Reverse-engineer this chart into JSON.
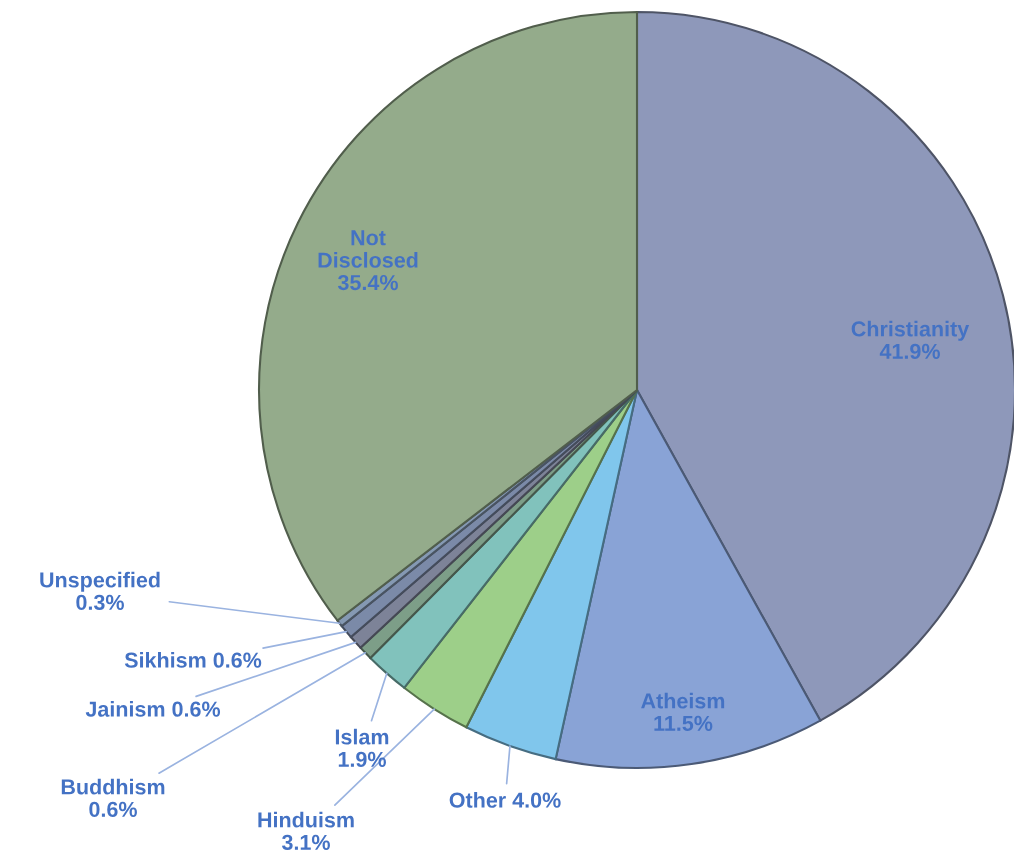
{
  "chart_data": {
    "type": "pie",
    "categories": [
      "Christianity",
      "Atheism",
      "Other",
      "Hinduism",
      "Islam",
      "Buddhism",
      "Jainism",
      "Sikhism",
      "Unspecified",
      "Not Disclosed"
    ],
    "values": [
      41.9,
      11.5,
      4.0,
      3.1,
      1.9,
      0.6,
      0.6,
      0.6,
      0.3,
      35.4
    ],
    "value_labels": [
      "41.9%",
      "11.5%",
      "4.0%",
      "3.1%",
      "1.9%",
      "0.6%",
      "0.6%",
      "0.6%",
      "0.3%",
      "35.4%"
    ],
    "colors": [
      "#8e98ba",
      "#89a3d6",
      "#80c6ec",
      "#9dcf89",
      "#81c2bc",
      "#7d9e88",
      "#7d8398",
      "#7b8aa8",
      "#8599b3",
      "#94ab8b"
    ]
  }
}
